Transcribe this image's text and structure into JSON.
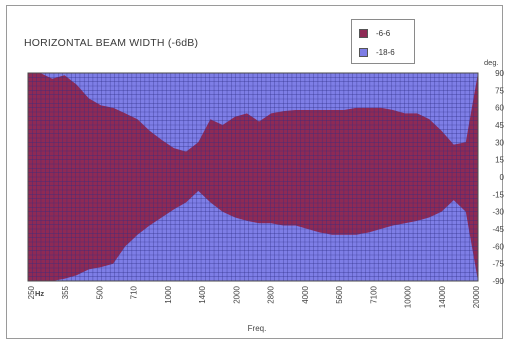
{
  "chart_data": {
    "type": "area",
    "title": "HORIZONTAL BEAM WIDTH (-6dB)",
    "xlabel": "Freq.",
    "x_unit": "Hz",
    "y_unit": "deg.",
    "ylim": [
      -90,
      90
    ],
    "y_ticks": [
      "90",
      "75",
      "60",
      "45",
      "30",
      "15",
      "0",
      "-15",
      "-30",
      "-45",
      "-60",
      "-75",
      "-90"
    ],
    "x_ticks": [
      "250",
      "355",
      "500",
      "710",
      "1000",
      "1400",
      "2000",
      "2800",
      "4000",
      "5600",
      "7100",
      "10000",
      "14000",
      "20000"
    ],
    "grid": true,
    "legend_position": "top-right",
    "colors": {
      "inner": "#8e2a55",
      "outer": "#7e7ee6",
      "grid": "#2f2f86"
    },
    "series": [
      {
        "name": "-6-6",
        "color": "#8e2a55"
      },
      {
        "name": "-18-6",
        "color": "#7e7ee6"
      }
    ],
    "upper_edge": [
      90,
      90,
      85,
      88,
      80,
      68,
      62,
      60,
      55,
      50,
      40,
      32,
      25,
      22,
      30,
      50,
      45,
      52,
      55,
      48,
      55,
      57,
      58,
      58,
      58,
      58,
      58,
      60,
      60,
      60,
      58,
      55,
      55,
      50,
      40,
      28,
      30,
      90
    ],
    "lower_edge": [
      -90,
      -90,
      -90,
      -88,
      -85,
      -80,
      -78,
      -75,
      -60,
      -50,
      -42,
      -35,
      -28,
      -22,
      -12,
      -22,
      -30,
      -35,
      -38,
      -40,
      -40,
      -42,
      -42,
      -45,
      -48,
      -50,
      -50,
      -50,
      -48,
      -45,
      -42,
      -40,
      -38,
      -35,
      -30,
      -20,
      -30,
      -90
    ]
  }
}
